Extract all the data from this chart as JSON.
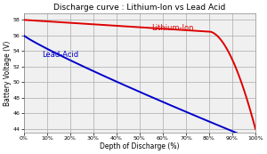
{
  "title": "Discharge curve : Lithium-Ion vs Lead Acid",
  "xlabel": "Depth of Discharge (%)",
  "ylabel": "Battery Voltage (V)",
  "xlim": [
    0,
    1.0
  ],
  "ylim": [
    43.5,
    58.8
  ],
  "yticks": [
    44,
    46,
    48,
    50,
    52,
    54,
    56,
    58
  ],
  "xticks": [
    0,
    0.1,
    0.2,
    0.3,
    0.4,
    0.5,
    0.6,
    0.7,
    0.8,
    0.9,
    1.0
  ],
  "lithium_color": "#dd0000",
  "lead_color": "#0000cc",
  "lithium_label": "Lithium-Ion",
  "lead_label": "Lead-Acid",
  "bg_color": "#f0f0f0",
  "grid_color": "#aaaaaa",
  "title_fontsize": 6.5,
  "label_fontsize": 5.5,
  "tick_fontsize": 4.5,
  "annotation_fontsize": 6.0,
  "line_width": 1.4
}
